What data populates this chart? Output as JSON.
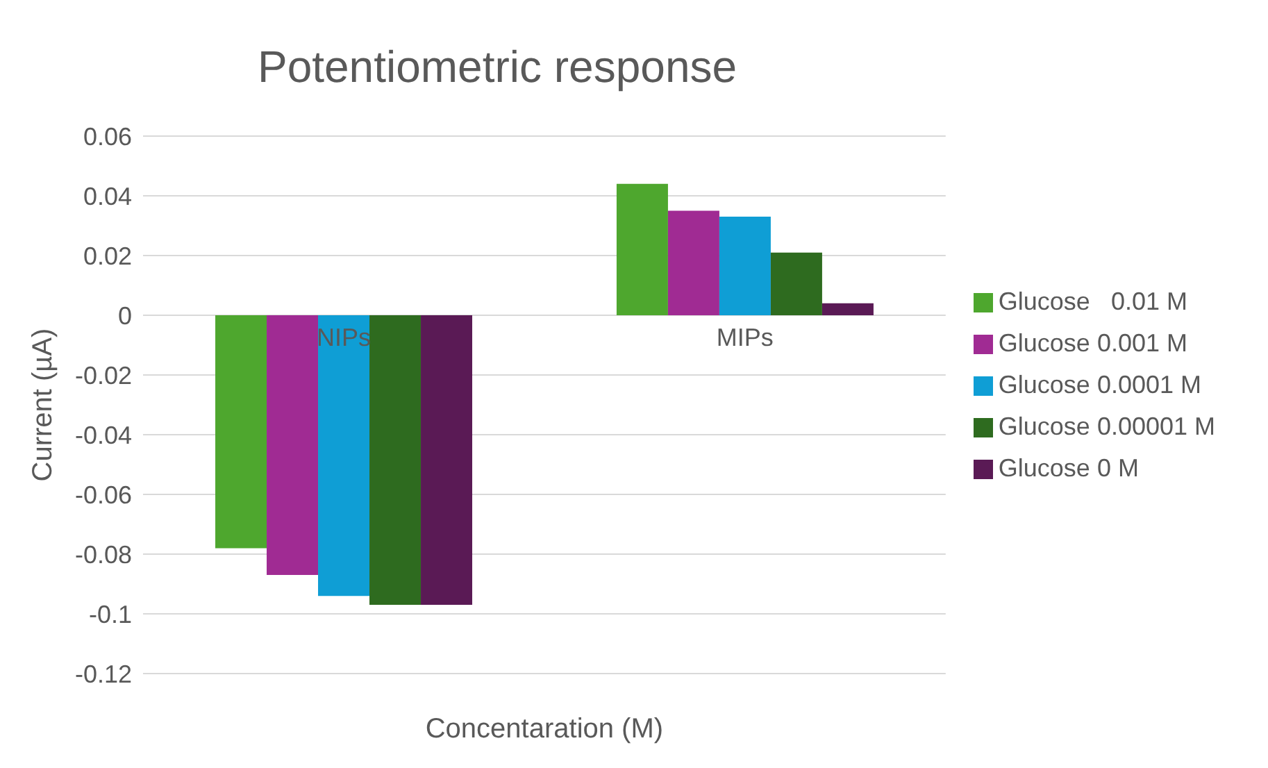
{
  "chart_data": {
    "type": "bar",
    "title": "Potentiometric response",
    "xlabel": "Concentaration (M)",
    "ylabel": "Current (µA)",
    "categories": [
      "NIPs",
      "MIPs"
    ],
    "series": [
      {
        "name": "Glucose   0.01 M",
        "color": "#4ea72e",
        "values": [
          -0.078,
          0.044
        ]
      },
      {
        "name": "Glucose 0.001 M",
        "color": "#a02b93",
        "values": [
          -0.087,
          0.035
        ]
      },
      {
        "name": "Glucose 0.0001 M",
        "color": "#0f9ed5",
        "values": [
          -0.094,
          0.033
        ]
      },
      {
        "name": "Glucose 0.00001 M",
        "color": "#2e6b1f",
        "values": [
          -0.097,
          0.021
        ]
      },
      {
        "name": "Glucose 0 M",
        "color": "#5a1a55",
        "values": [
          -0.097,
          0.004
        ]
      }
    ],
    "ylim": [
      -0.12,
      0.06
    ],
    "yticks": [
      -0.12,
      -0.1,
      -0.08,
      -0.06,
      -0.04,
      -0.02,
      0,
      0.02,
      0.04,
      0.06
    ],
    "grid": "y",
    "legend": "right"
  }
}
